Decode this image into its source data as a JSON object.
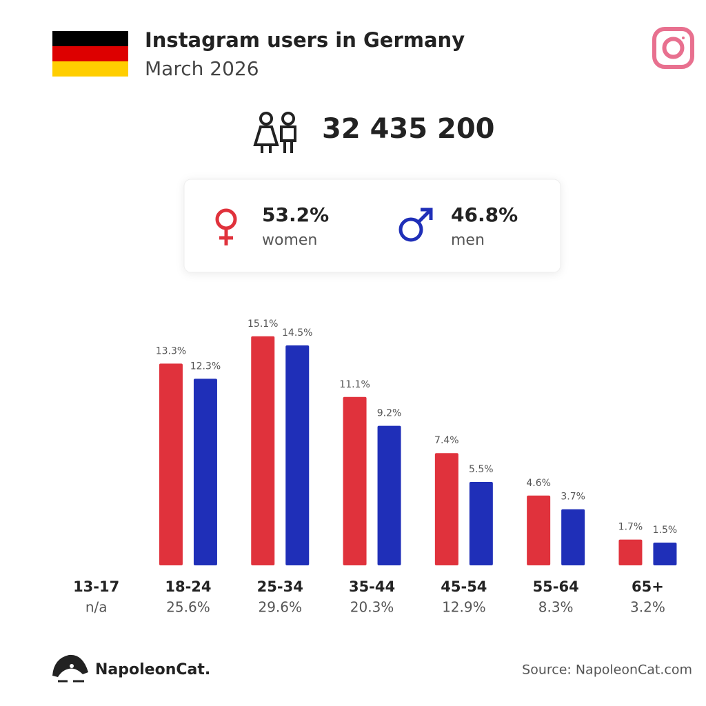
{
  "header": {
    "title": "Instagram users in Germany",
    "subtitle": "March 2026"
  },
  "total_users": "32 435 200",
  "gender": {
    "women": "53.2%",
    "men": "46.8%"
  },
  "chart_data": {
    "type": "bar",
    "categories": [
      "13-17",
      "18-24",
      "25-34",
      "35-44",
      "45-54",
      "55-64",
      "65+"
    ],
    "category_totals": [
      "n/a",
      "25.6%",
      "29.6%",
      "20.3%",
      "12.9%",
      "8.3%",
      "3.2%"
    ],
    "series": [
      {
        "name": "women",
        "color": "#e0323c",
        "values": [
          null,
          13.3,
          15.1,
          11.1,
          7.4,
          4.6,
          1.7
        ],
        "value_labels": [
          null,
          "13.3%",
          "15.1%",
          "11.1%",
          "7.4%",
          "4.6%",
          "1.7%"
        ]
      },
      {
        "name": "men",
        "color": "#1f2fb8",
        "values": [
          null,
          12.3,
          14.5,
          9.2,
          5.5,
          3.7,
          1.5
        ],
        "value_labels": [
          null,
          "12.3%",
          "14.5%",
          "9.2%",
          "5.5%",
          "3.7%",
          "1.5%"
        ]
      }
    ],
    "ylim": [
      0,
      16
    ]
  },
  "footer": {
    "brand": "NapoleonCat.",
    "source": "Source: NapoleonCat.com"
  }
}
